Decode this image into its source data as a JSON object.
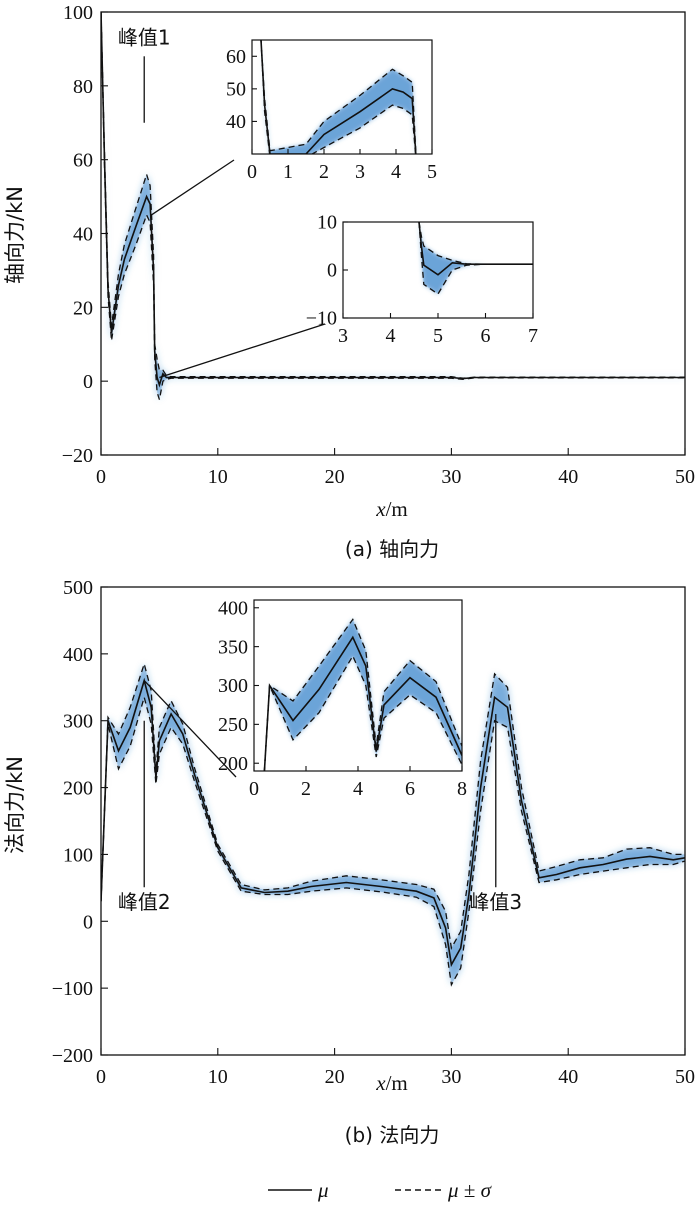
{
  "legend": {
    "mean_label": "μ",
    "band_label": "μ ± σ"
  },
  "colors": {
    "band": "#2f7ec8",
    "line": "#111111"
  },
  "chart_data": [
    {
      "type": "line",
      "id": "a",
      "caption": "(a) 轴向力",
      "xlabel_var": "x",
      "xlabel_unit": "/m",
      "ylabel": "轴向力/kN",
      "xlim": [
        0,
        50
      ],
      "ylim": [
        -20,
        100
      ],
      "xticks": [
        0,
        10,
        20,
        30,
        40,
        50
      ],
      "yticks": [
        -20,
        0,
        20,
        40,
        60,
        80,
        100
      ],
      "annotations": [
        {
          "text": "峰值1",
          "x": 3.7,
          "y_tip": 70,
          "y_top": 88
        }
      ],
      "series": [
        {
          "role": "mean",
          "x": [
            0,
            0.3,
            0.6,
            0.9,
            1.5,
            2,
            3,
            3.9,
            4.2,
            4.5,
            4.6,
            4.8,
            5,
            5.3,
            5.6,
            6,
            10,
            30,
            31,
            32,
            50
          ],
          "y": [
            100,
            60,
            25,
            13,
            26,
            33,
            42,
            50,
            48,
            30,
            8,
            1,
            -1,
            2,
            1,
            1,
            1,
            1,
            0.7,
            1,
            1
          ]
        },
        {
          "role": "upper",
          "x": [
            0,
            0.3,
            0.6,
            0.9,
            1.5,
            2,
            3,
            3.9,
            4.2,
            4.5,
            4.6,
            4.8,
            5,
            5.3,
            5.6,
            6,
            10,
            30,
            31,
            32,
            50
          ],
          "y": [
            100,
            62,
            27,
            15,
            29,
            37,
            47,
            56,
            53,
            34,
            10,
            6,
            3,
            3,
            1.5,
            1.2,
            1.2,
            1.2,
            0.8,
            1.1,
            1.1
          ]
        },
        {
          "role": "lower",
          "x": [
            0,
            0.3,
            0.6,
            0.9,
            1.5,
            2,
            3,
            3.9,
            4.2,
            4.5,
            4.6,
            4.8,
            5,
            5.3,
            5.6,
            6,
            10,
            30,
            31,
            32,
            50
          ],
          "y": [
            100,
            58,
            23,
            11,
            23,
            29,
            37,
            45,
            43,
            26,
            6,
            -3,
            -5,
            0,
            0.5,
            0.8,
            0.8,
            0.8,
            0.5,
            0.9,
            0.9
          ]
        }
      ],
      "insets": [
        {
          "xlim": [
            0,
            5
          ],
          "ylim": [
            30,
            65
          ],
          "xticks": [
            0,
            1,
            2,
            3,
            4,
            5
          ],
          "yticks": [
            40,
            50,
            60
          ],
          "zoom_from": [
            4.3,
            45
          ],
          "series": [
            {
              "role": "mean",
              "x": [
                0.25,
                0.35,
                0.5,
                1.5,
                2,
                3,
                3.9,
                4.2,
                4.45,
                4.55
              ],
              "y": [
                65,
                45,
                30,
                30,
                36,
                43,
                50,
                49,
                47,
                30
              ]
            },
            {
              "role": "upper",
              "x": [
                0.25,
                0.35,
                0.5,
                1.5,
                2,
                3,
                3.9,
                4.2,
                4.45,
                4.55
              ],
              "y": [
                65,
                47,
                31,
                33,
                40,
                48,
                56,
                54,
                52,
                31
              ]
            },
            {
              "role": "lower",
              "x": [
                0.25,
                0.35,
                0.5,
                1.5,
                2,
                3,
                3.9,
                4.2,
                4.45,
                4.55
              ],
              "y": [
                65,
                43,
                29,
                29,
                32,
                38,
                45,
                44,
                42,
                29
              ]
            }
          ]
        },
        {
          "xlim": [
            3,
            7
          ],
          "ylim": [
            -10,
            10
          ],
          "xticks": [
            3,
            4,
            5,
            6,
            7
          ],
          "yticks": [
            -10,
            0,
            10
          ],
          "zoom_from": [
            5.0,
            1
          ],
          "series": [
            {
              "role": "mean",
              "x": [
                4.6,
                4.65,
                4.7,
                5,
                5.3,
                5.6,
                6,
                7
              ],
              "y": [
                10,
                5,
                1,
                -1,
                1.5,
                1.2,
                1.2,
                1.2
              ]
            },
            {
              "role": "upper",
              "x": [
                4.6,
                4.65,
                4.7,
                5,
                5.3,
                5.6,
                6,
                7
              ],
              "y": [
                10,
                7,
                5,
                3,
                2,
                1.3,
                1.2,
                1.2
              ]
            },
            {
              "role": "lower",
              "x": [
                4.6,
                4.65,
                4.7,
                5,
                5.3,
                5.6,
                6,
                7
              ],
              "y": [
                10,
                3,
                -3,
                -5,
                0,
                1,
                1.2,
                1.2
              ]
            }
          ]
        }
      ]
    },
    {
      "type": "line",
      "id": "b",
      "caption": "(b) 法向力",
      "xlabel_var": "x",
      "xlabel_unit": "/m",
      "ylabel": "法向力/kN",
      "xlim": [
        0,
        50
      ],
      "ylim": [
        -200,
        500
      ],
      "xticks": [
        0,
        10,
        20,
        30,
        40,
        50
      ],
      "yticks": [
        -200,
        -100,
        0,
        100,
        200,
        300,
        400,
        500
      ],
      "annotations": [
        {
          "text": "峰值2",
          "x": 3.7,
          "y_tip": 300,
          "y_top": 360,
          "label_below": true
        },
        {
          "text": "峰值3",
          "x": 33.8,
          "y_tip": 310,
          "y_top": 50,
          "label_below": false
        }
      ],
      "series": [
        {
          "role": "mean",
          "x": [
            0,
            0.6,
            1.5,
            2.5,
            3.7,
            4.3,
            4.7,
            5,
            6,
            7,
            8,
            10,
            12,
            14,
            16,
            18,
            21,
            24,
            27,
            28.5,
            29.5,
            30,
            30.8,
            31.5,
            32.5,
            33.7,
            34.8,
            36,
            37.5,
            39,
            41,
            43,
            45,
            47,
            49,
            50
          ],
          "y": [
            30,
            300,
            255,
            290,
            360,
            320,
            215,
            270,
            310,
            280,
            220,
            110,
            50,
            43,
            45,
            52,
            58,
            52,
            45,
            35,
            -10,
            -65,
            -40,
            40,
            200,
            335,
            320,
            180,
            65,
            70,
            80,
            85,
            93,
            97,
            92,
            95
          ]
        },
        {
          "role": "upper",
          "x": [
            0,
            0.6,
            1.5,
            2.5,
            3.7,
            4.3,
            4.7,
            5,
            6,
            7,
            8,
            10,
            12,
            14,
            16,
            18,
            21,
            24,
            27,
            28.5,
            29.5,
            30,
            30.8,
            31.5,
            32.5,
            33.7,
            34.8,
            36,
            37.5,
            39,
            41,
            43,
            45,
            47,
            49,
            50
          ],
          "y": [
            30,
            305,
            280,
            320,
            385,
            345,
            225,
            290,
            330,
            295,
            230,
            115,
            55,
            47,
            50,
            60,
            68,
            62,
            55,
            48,
            15,
            -40,
            -15,
            70,
            240,
            370,
            350,
            200,
            75,
            82,
            92,
            95,
            108,
            110,
            100,
            100
          ]
        },
        {
          "role": "lower",
          "x": [
            0,
            0.6,
            1.5,
            2.5,
            3.7,
            4.3,
            4.7,
            5,
            6,
            7,
            8,
            10,
            12,
            14,
            16,
            18,
            21,
            24,
            27,
            28.5,
            29.5,
            30,
            30.8,
            31.5,
            32.5,
            33.7,
            34.8,
            36,
            37.5,
            39,
            41,
            43,
            45,
            47,
            49,
            50
          ],
          "y": [
            30,
            295,
            228,
            262,
            335,
            295,
            205,
            250,
            290,
            265,
            210,
            105,
            45,
            40,
            40,
            45,
            50,
            44,
            36,
            22,
            -35,
            -95,
            -70,
            15,
            165,
            300,
            290,
            165,
            58,
            62,
            70,
            75,
            80,
            85,
            85,
            90
          ]
        }
      ],
      "insets": [
        {
          "xlim": [
            0,
            8
          ],
          "ylim": [
            190,
            410
          ],
          "xticks": [
            0,
            2,
            4,
            6,
            8
          ],
          "yticks": [
            200,
            250,
            300,
            350,
            400
          ],
          "zoom_from": [
            3.7,
            360
          ],
          "series": [
            {
              "role": "mean",
              "x": [
                0.4,
                0.6,
                1.5,
                2.5,
                3.8,
                4.3,
                4.7,
                5,
                6,
                7,
                8
              ],
              "y": [
                190,
                300,
                255,
                295,
                362,
                325,
                215,
                275,
                310,
                285,
                210
              ]
            },
            {
              "role": "upper",
              "x": [
                0.4,
                0.6,
                1.5,
                2.5,
                3.8,
                4.3,
                4.7,
                5,
                6,
                7,
                8
              ],
              "y": [
                190,
                300,
                280,
                325,
                385,
                345,
                222,
                292,
                332,
                305,
                222
              ]
            },
            {
              "role": "lower",
              "x": [
                0.4,
                0.6,
                1.5,
                2.5,
                3.8,
                4.3,
                4.7,
                5,
                6,
                7,
                8
              ],
              "y": [
                190,
                300,
                230,
                265,
                338,
                300,
                208,
                258,
                288,
                265,
                198
              ]
            }
          ]
        }
      ]
    }
  ]
}
